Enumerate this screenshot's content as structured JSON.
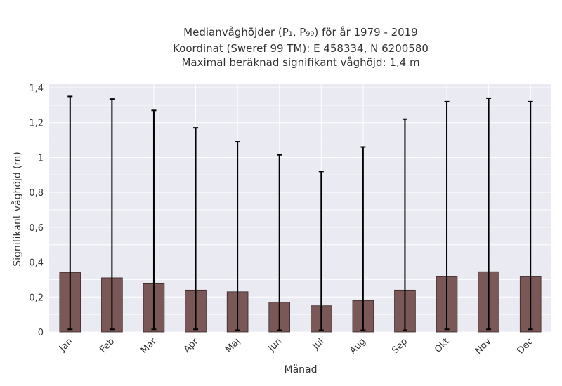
{
  "chart_data": {
    "type": "bar",
    "title_lines": [
      "Medianvåghöjder (P₁, P₉₉) för år 1979 - 2019",
      "Koordinat (Sweref 99 TM): E 458334, N 6200580",
      "Maximal beräknad signifikant våghöjd: 1,4 m"
    ],
    "xlabel": "Månad",
    "ylabel": "Signifikant våghöjd (m)",
    "categories": [
      "Jan",
      "Feb",
      "Mar",
      "Apr",
      "Maj",
      "Jun",
      "Jul",
      "Aug",
      "Sep",
      "Okt",
      "Nov",
      "Dec"
    ],
    "values": [
      0.34,
      0.31,
      0.28,
      0.24,
      0.23,
      0.17,
      0.15,
      0.18,
      0.24,
      0.32,
      0.345,
      0.32
    ],
    "error_low": [
      0.015,
      0.015,
      0.015,
      0.015,
      0.01,
      0.01,
      0.01,
      0.01,
      0.01,
      0.015,
      0.015,
      0.015
    ],
    "error_high": [
      1.35,
      1.335,
      1.27,
      1.17,
      1.09,
      1.015,
      0.92,
      1.06,
      1.22,
      1.32,
      1.34,
      1.32
    ],
    "ylim": [
      0,
      1.4
    ],
    "yticks": [
      0,
      0.2,
      0.4,
      0.6,
      0.8,
      1,
      1.2,
      1.4
    ],
    "ytick_labels": [
      "0",
      "0,2",
      "0,4",
      "0,6",
      "0,8",
      "1",
      "1,2",
      "1,4"
    ],
    "grid": true,
    "colors": {
      "bar": "#7a5858",
      "bar_edge": "#3a2626",
      "plot_bg": "#eaeaf2",
      "grid": "#ffffff",
      "error": "#000000",
      "text": "#333333"
    }
  }
}
